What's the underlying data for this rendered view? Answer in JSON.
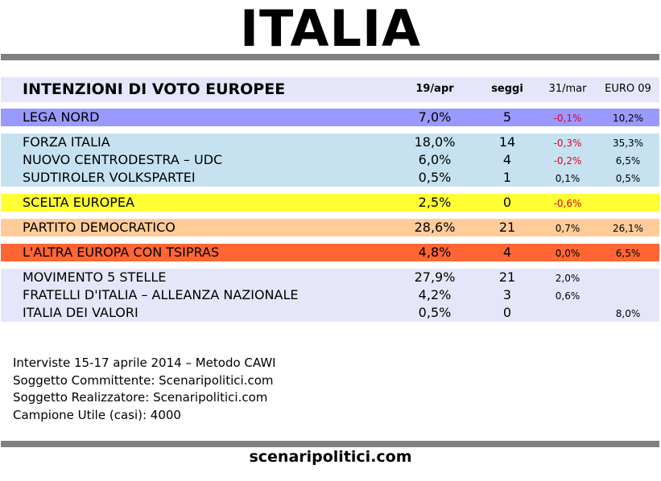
{
  "title": "ITALIA",
  "header": {
    "title": "INTENZIONI DI VOTO EUROPEE",
    "col1": "19/apr",
    "col2": "seggi",
    "col3": "31/mar",
    "col4": "EURO 09"
  },
  "groups": [
    {
      "color": "#9999ff",
      "rows": [
        {
          "name": "LEGA NORD",
          "v1": "7,0%",
          "v2": "5",
          "v3": "-0,1%",
          "v4": "10,2%"
        }
      ]
    },
    {
      "color": "#c6e2f0",
      "rows": [
        {
          "name": "FORZA ITALIA",
          "v1": "18,0%",
          "v2": "14",
          "v3": "-0,3%",
          "v4": "35,3%"
        },
        {
          "name": "NUOVO CENTRODESTRA – UDC",
          "v1": "6,0%",
          "v2": "4",
          "v3": "-0,2%",
          "v4": "6,5%"
        },
        {
          "name": "SUDTIROLER VOLKSPARTEI",
          "v1": "0,5%",
          "v2": "1",
          "v3": "0,1%",
          "v4": "0,5%"
        }
      ]
    },
    {
      "color": "#ffff33",
      "rows": [
        {
          "name": "SCELTA EUROPEA",
          "v1": "2,5%",
          "v2": "0",
          "v3": "-0,6%",
          "v4": ""
        }
      ]
    },
    {
      "color": "#ffcc99",
      "rows": [
        {
          "name": "PARTITO DEMOCRATICO",
          "v1": "28,6%",
          "v2": "21",
          "v3": "0,7%",
          "v4": "26,1%"
        }
      ]
    },
    {
      "color": "#ff6633",
      "rows": [
        {
          "name": "L'ALTRA EUROPA CON TSIPRAS",
          "v1": "4,8%",
          "v2": "4",
          "v3": "0,0%",
          "v4": "6,5%"
        }
      ]
    },
    {
      "color": "#e6e6fa",
      "rows": [
        {
          "name": "MOVIMENTO 5 STELLE",
          "v1": "27,9%",
          "v2": "21",
          "v3": "2,0%",
          "v4": ""
        },
        {
          "name": "FRATELLI D'ITALIA – ALLEANZA NAZIONALE",
          "v1": "4,2%",
          "v2": "3",
          "v3": "0,6%",
          "v4": ""
        },
        {
          "name": "ITALIA DEI VALORI",
          "v1": "0,5%",
          "v2": "0",
          "v3": "",
          "v4": "8,0%"
        }
      ]
    }
  ],
  "notes": [
    "Interviste 15-17 aprile 2014 – Metodo CAWI",
    "Soggetto Committente: Scenaripolitici.com",
    "Soggetto Realizzatore: Scenaripolitici.com",
    "Campione Utile (casi): 4000"
  ],
  "footer": "scenaripolitici.com"
}
